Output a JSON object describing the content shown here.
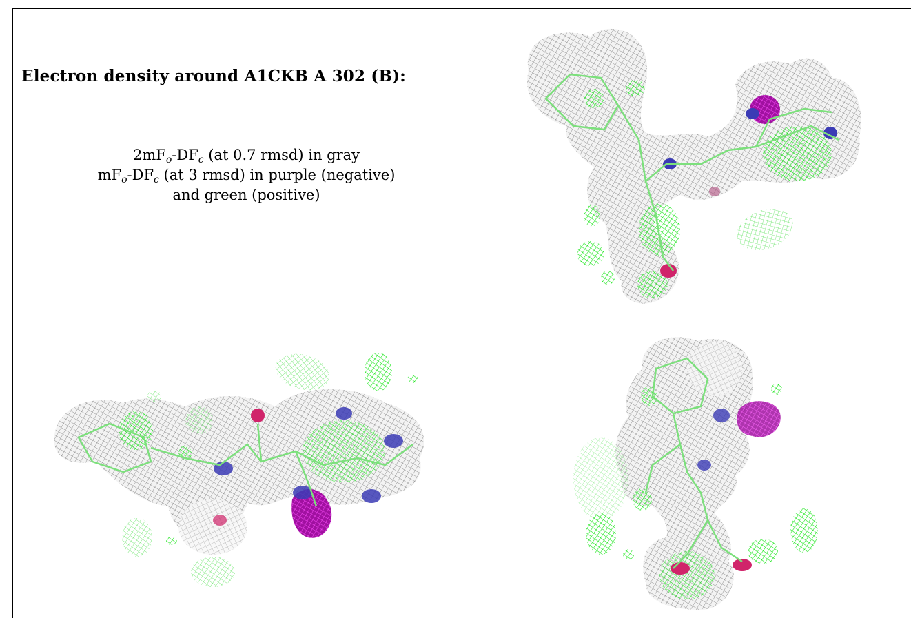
{
  "header": {
    "title": "Electron density around A1CKB A 302 (B):"
  },
  "legend": {
    "line1": {
      "prefix": "2mF",
      "sub1": "o",
      "mid": "-DF",
      "sub2": "c",
      "suffix": " (at 0.7 rmsd) in gray"
    },
    "line2": {
      "prefix": "mF",
      "sub1": "o",
      "mid": "-DF",
      "sub2": "c",
      "suffix": " (at 3 rmsd) in purple (negative)"
    },
    "line3": "and green (positive)"
  },
  "colors": {
    "mesh_gray": "#8c8c8c",
    "positive_green": "#19e619",
    "negative_purple": "#cc18cc",
    "nitrogen_blue": "#3b3bb5",
    "oxygen_red": "#d0246a",
    "carbon_green": "#7ce07c"
  },
  "views": [
    {
      "name": "view-top-right"
    },
    {
      "name": "view-bottom-left"
    },
    {
      "name": "view-bottom-right"
    }
  ]
}
